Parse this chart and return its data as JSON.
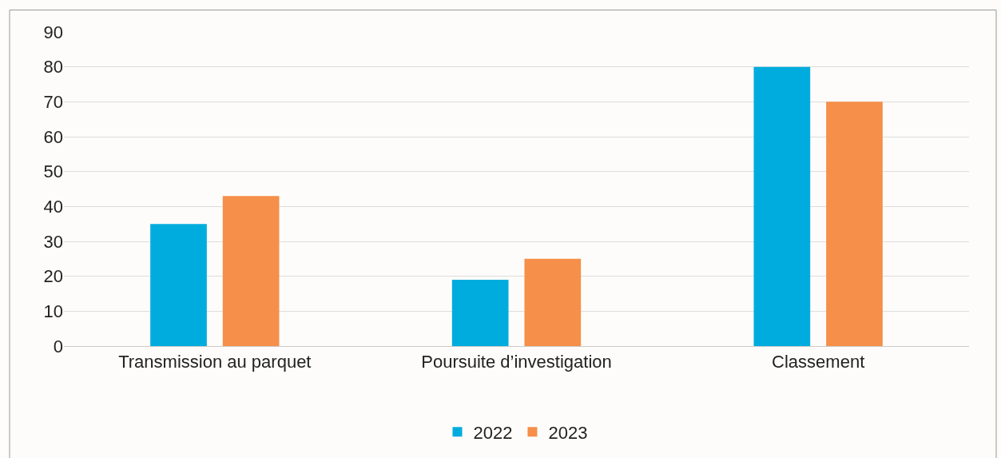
{
  "chart_data": {
    "type": "bar",
    "categories": [
      "Transmission au parquet",
      "Poursuite d’investigation",
      "Classement"
    ],
    "series": [
      {
        "name": "2022",
        "color": "#00acde",
        "values": [
          35,
          19,
          80
        ]
      },
      {
        "name": "2023",
        "color": "#f68f49",
        "values": [
          43,
          25,
          70
        ]
      }
    ],
    "ylim": [
      0,
      90
    ],
    "yticks": [
      0,
      10,
      20,
      30,
      40,
      50,
      60,
      70,
      80,
      90
    ],
    "grid": "y",
    "legend": "bottom"
  }
}
